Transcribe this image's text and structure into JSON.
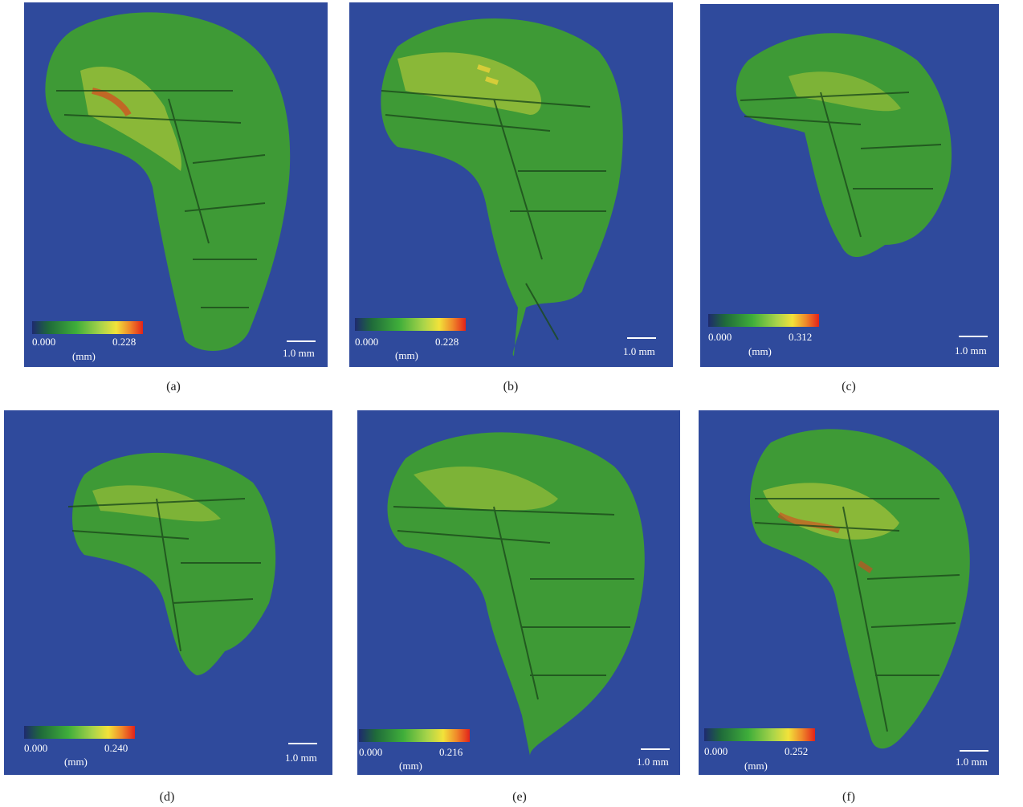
{
  "colors": {
    "background": "#2f4a9c",
    "bone_green": "#3e9a36",
    "bone_dark": "#1c4a1c",
    "hot_yellow": "#d9d63a",
    "hot_red": "#d9461e"
  },
  "panels": [
    {
      "label": "(a)",
      "colorbar": {
        "min": "0.000",
        "max": "0.228",
        "unit": "(mm)"
      },
      "scale_bar": "1.0 mm"
    },
    {
      "label": "(b)",
      "colorbar": {
        "min": "0.000",
        "max": "0.228",
        "unit": "(mm)"
      },
      "scale_bar": "1.0 mm"
    },
    {
      "label": "(c)",
      "colorbar": {
        "min": "0.000",
        "max": "0.312",
        "unit": "(mm)"
      },
      "scale_bar": "1.0 mm"
    },
    {
      "label": "(d)",
      "colorbar": {
        "min": "0.000",
        "max": "0.240",
        "unit": "(mm)"
      },
      "scale_bar": "1.0 mm"
    },
    {
      "label": "(e)",
      "colorbar": {
        "min": "0.000",
        "max": "0.216",
        "unit": "(mm)"
      },
      "scale_bar": "1.0 mm"
    },
    {
      "label": "(f)",
      "colorbar": {
        "min": "0.000",
        "max": "0.252",
        "unit": "(mm)"
      },
      "scale_bar": "1.0 mm"
    }
  ]
}
